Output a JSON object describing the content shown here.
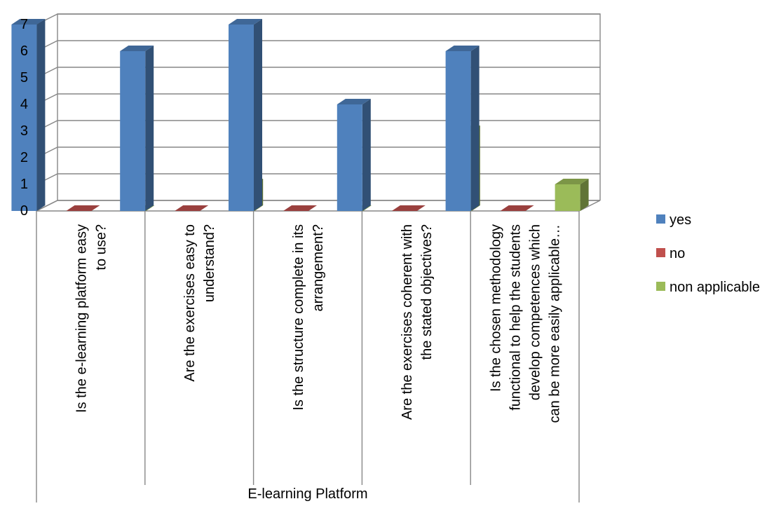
{
  "chart_data": {
    "type": "bar",
    "title": "",
    "ylim": [
      0,
      7
    ],
    "yticks": [
      0,
      1,
      2,
      3,
      4,
      5,
      6,
      7
    ],
    "grid": true,
    "legend_position": "right",
    "categories": [
      [
        "Is the e-learning platform easy",
        "to use?"
      ],
      [
        "Are the exercises easy to",
        "understand?"
      ],
      [
        "Is the structure complete in its",
        "arrangement?"
      ],
      [
        "Are the exercises coherent with",
        "the stated objectives?"
      ],
      [
        "Is the chosen methodology",
        "functional to help the students",
        "develop competences which",
        "can be more easily applicable…"
      ]
    ],
    "group_label": "E-learning Platform",
    "series": [
      {
        "name": "yes",
        "values": [
          7,
          6,
          7,
          4,
          6
        ],
        "color": "#4F81BD"
      },
      {
        "name": "no",
        "values": [
          0,
          0,
          0,
          0,
          0
        ],
        "color": "#C0504D"
      },
      {
        "name": "non applicable",
        "values": [
          0,
          1,
          0,
          3,
          1
        ],
        "color": "#9BBB59"
      }
    ]
  }
}
